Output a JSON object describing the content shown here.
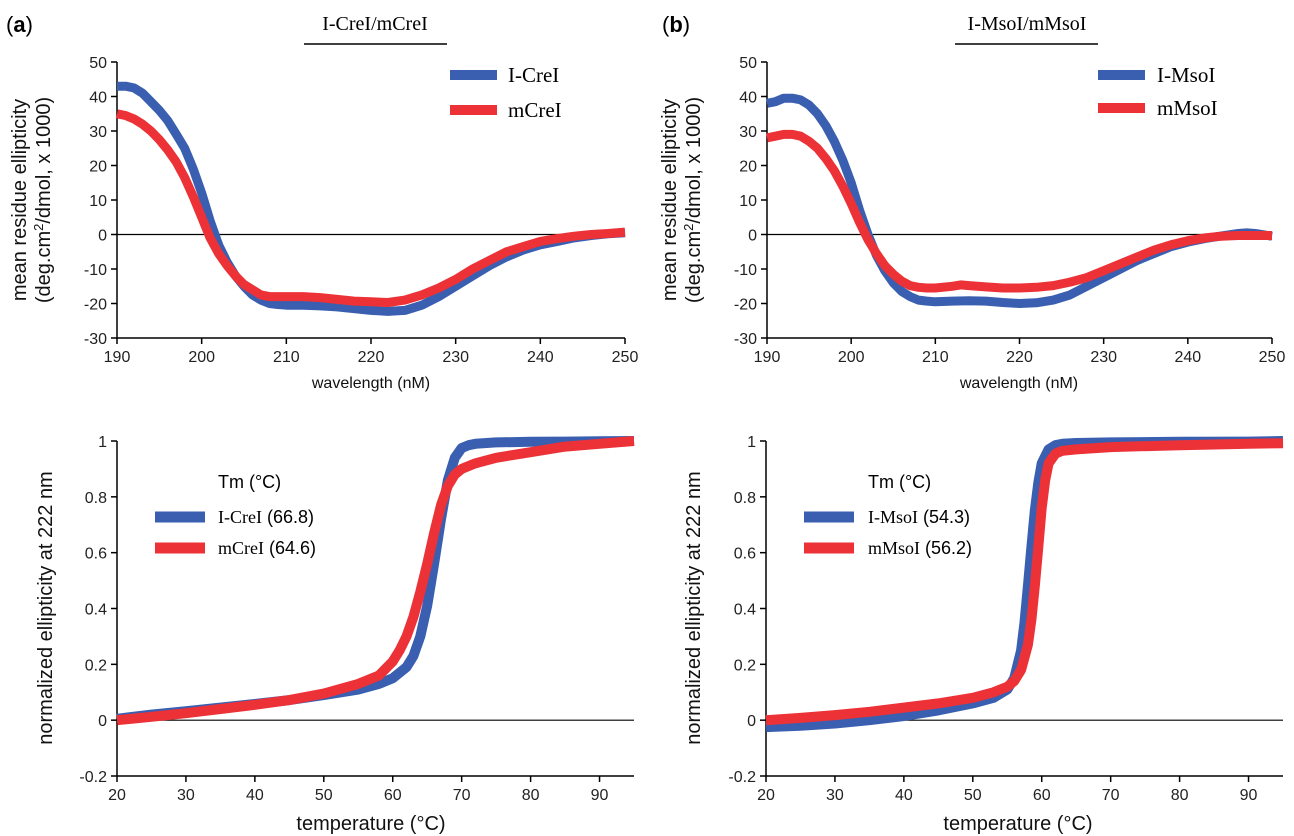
{
  "panels": [
    {
      "letter": "a",
      "title": "I-CreI/mCreI"
    },
    {
      "letter": "b",
      "title": "I-MsoI/mMsoI"
    }
  ],
  "colors": {
    "blue": "#3a5fb0",
    "red": "#ec3237",
    "axis": "#000000"
  },
  "chart_data": [
    {
      "type": "line",
      "panel": "a",
      "xlabel": "wavelength (nM)",
      "ylabel_line1": "mean residue ellipticity",
      "ylabel_line2_prefix": "(deg.cm",
      "ylabel_line2_sup": "2",
      "ylabel_line2_suffix": "/dmol,  x 1000)",
      "xlim": [
        190,
        250
      ],
      "ylim": [
        -30,
        50
      ],
      "xticks": [
        190,
        200,
        210,
        220,
        230,
        240,
        250
      ],
      "yticks": [
        -30,
        -20,
        -10,
        0,
        10,
        20,
        30,
        40,
        50
      ],
      "legend_position": "top-right",
      "series": [
        {
          "name": "I-CreI",
          "color": "#3a5fb0",
          "x": [
            190,
            191,
            192,
            193,
            194,
            195,
            196,
            197,
            198,
            199,
            200,
            201,
            202,
            203,
            204,
            205,
            206,
            207,
            208,
            209,
            210,
            212,
            214,
            216,
            218,
            220,
            222,
            224,
            226,
            228,
            230,
            232,
            234,
            236,
            238,
            240,
            242,
            244,
            246,
            248,
            250
          ],
          "y": [
            43,
            43,
            42.5,
            41,
            38.5,
            36,
            33,
            29,
            25,
            19,
            12,
            4,
            -3,
            -8,
            -12,
            -15,
            -17.5,
            -19,
            -20,
            -20.3,
            -20.5,
            -20.5,
            -20.7,
            -21,
            -21.5,
            -22,
            -22.3,
            -22,
            -20.5,
            -18,
            -15,
            -12,
            -9,
            -6.5,
            -4.5,
            -3,
            -2,
            -1,
            -0.3,
            0.2,
            0.5
          ]
        },
        {
          "name": "mCreI",
          "color": "#ec3237",
          "x": [
            190,
            191,
            192,
            193,
            194,
            195,
            196,
            197,
            198,
            199,
            200,
            201,
            202,
            203,
            204,
            205,
            206,
            207,
            208,
            209,
            210,
            212,
            214,
            216,
            218,
            220,
            222,
            224,
            226,
            228,
            230,
            232,
            234,
            236,
            238,
            240,
            242,
            244,
            246,
            248,
            250
          ],
          "y": [
            35,
            34.5,
            33.5,
            32,
            30,
            27.5,
            24.5,
            21,
            16.5,
            11,
            5,
            -1,
            -5.5,
            -9,
            -12,
            -14.5,
            -16,
            -17.5,
            -18,
            -18,
            -18,
            -18,
            -18.3,
            -18.8,
            -19.3,
            -19.5,
            -19.7,
            -19,
            -17.5,
            -15.5,
            -13,
            -10,
            -7.5,
            -5,
            -3.5,
            -2,
            -1.2,
            -0.5,
            0,
            0.3,
            0.7
          ]
        }
      ]
    },
    {
      "type": "line",
      "panel": "b",
      "xlabel": "wavelength (nM)",
      "ylabel_line1": "mean residue ellipticity",
      "ylabel_line2_prefix": "(deg.cm",
      "ylabel_line2_sup": "2",
      "ylabel_line2_suffix": "/dmol,  x 1000)",
      "xlim": [
        190,
        250
      ],
      "ylim": [
        -30,
        50
      ],
      "xticks": [
        190,
        200,
        210,
        220,
        230,
        240,
        250
      ],
      "yticks": [
        -30,
        -20,
        -10,
        0,
        10,
        20,
        30,
        40,
        50
      ],
      "legend_position": "top-right",
      "series": [
        {
          "name": "I-MsoI",
          "color": "#3a5fb0",
          "x": [
            190,
            191,
            192,
            193,
            194,
            195,
            196,
            197,
            198,
            199,
            200,
            201,
            202,
            203,
            204,
            205,
            206,
            207,
            208,
            209,
            210,
            212,
            214,
            216,
            218,
            220,
            222,
            224,
            226,
            228,
            230,
            232,
            234,
            236,
            238,
            240,
            242,
            244,
            246,
            247,
            248,
            250
          ],
          "y": [
            38,
            38.5,
            39.5,
            39.5,
            39,
            37.5,
            35,
            31.5,
            27,
            21.5,
            15,
            7,
            0,
            -6,
            -10.5,
            -14,
            -16.5,
            -18,
            -19,
            -19.3,
            -19.5,
            -19.3,
            -19.2,
            -19.3,
            -19.7,
            -20,
            -19.8,
            -19,
            -17.5,
            -15,
            -12.5,
            -10,
            -7.5,
            -5.5,
            -3.5,
            -2.2,
            -1.2,
            -0.4,
            0.3,
            0.5,
            0.3,
            -0.5
          ]
        },
        {
          "name": "mMsoI",
          "color": "#ec3237",
          "x": [
            190,
            191,
            192,
            193,
            194,
            195,
            196,
            197,
            198,
            199,
            200,
            201,
            202,
            203,
            204,
            205,
            206,
            207,
            208,
            209,
            210,
            212,
            213,
            214,
            216,
            218,
            220,
            222,
            224,
            226,
            228,
            230,
            232,
            234,
            236,
            238,
            240,
            242,
            244,
            246,
            248,
            250
          ],
          "y": [
            28,
            28.5,
            29,
            29,
            28.5,
            27,
            25,
            22,
            18.5,
            14,
            9,
            3.5,
            -1.5,
            -5.5,
            -9,
            -11.5,
            -13.5,
            -14.8,
            -15.3,
            -15.5,
            -15.5,
            -15,
            -14.6,
            -14.8,
            -15.2,
            -15.5,
            -15.5,
            -15.3,
            -14.8,
            -13.8,
            -12.5,
            -10.5,
            -8.5,
            -6.5,
            -4.5,
            -3,
            -1.8,
            -1,
            -0.5,
            -0.3,
            -0.3,
            -0.3
          ]
        }
      ]
    },
    {
      "type": "line",
      "panel": "a",
      "xlabel": "temperature (°C)",
      "ylabel": "normalized ellipticity at 222 nm",
      "xlim": [
        20,
        95
      ],
      "ylim": [
        -0.2,
        1
      ],
      "xticks": [
        20,
        30,
        40,
        50,
        60,
        70,
        80,
        90
      ],
      "yticks": [
        -0.2,
        0,
        0.2,
        0.4,
        0.6,
        0.8,
        1
      ],
      "ytick_labels": [
        "-0.2",
        "0",
        "0.2",
        "0.4",
        "0.6",
        "0.8",
        "1"
      ],
      "legend_title": "Tm (°C)",
      "legend_position": "middle-left",
      "series": [
        {
          "name": "I-CreI",
          "tm_label": "(66.8)",
          "color": "#3a5fb0",
          "x": [
            20,
            25,
            30,
            35,
            40,
            45,
            50,
            55,
            58,
            60,
            62,
            63,
            64,
            65,
            66,
            67,
            68,
            69,
            70,
            71,
            72,
            75,
            80,
            85,
            90,
            95
          ],
          "y": [
            0.005,
            0.02,
            0.032,
            0.045,
            0.058,
            0.072,
            0.09,
            0.11,
            0.13,
            0.15,
            0.19,
            0.23,
            0.3,
            0.41,
            0.56,
            0.72,
            0.86,
            0.94,
            0.975,
            0.985,
            0.99,
            0.995,
            0.997,
            0.998,
            0.999,
            1
          ]
        },
        {
          "name": "mCreI",
          "tm_label": "(64.6)",
          "color": "#ec3237",
          "x": [
            20,
            25,
            30,
            35,
            40,
            45,
            50,
            55,
            58,
            60,
            61,
            62,
            63,
            64,
            65,
            66,
            67,
            68,
            69,
            70,
            72,
            75,
            80,
            85,
            90,
            95
          ],
          "y": [
            0,
            0.012,
            0.025,
            0.04,
            0.055,
            0.072,
            0.095,
            0.13,
            0.16,
            0.21,
            0.25,
            0.3,
            0.37,
            0.46,
            0.56,
            0.67,
            0.77,
            0.84,
            0.88,
            0.9,
            0.92,
            0.94,
            0.96,
            0.98,
            0.99,
            1
          ]
        }
      ]
    },
    {
      "type": "line",
      "panel": "b",
      "xlabel": "temperature (°C)",
      "ylabel": "normalized ellipticity at 222 nm",
      "xlim": [
        20,
        95
      ],
      "ylim": [
        -0.2,
        1
      ],
      "xticks": [
        20,
        30,
        40,
        50,
        60,
        70,
        80,
        90
      ],
      "yticks": [
        -0.2,
        0,
        0.2,
        0.4,
        0.6,
        0.8,
        1
      ],
      "ytick_labels": [
        "-0.2",
        "0",
        "0.2",
        "0.4",
        "0.6",
        "0.8",
        "1"
      ],
      "legend_title": "Tm (°C)",
      "legend_position": "middle-left",
      "series": [
        {
          "name": "I-MsoI",
          "tm_label": "(54.3)",
          "color": "#3a5fb0",
          "x": [
            20,
            25,
            30,
            35,
            40,
            45,
            50,
            53,
            55,
            56,
            57,
            57.5,
            58,
            58.5,
            59,
            59.5,
            60,
            61,
            62,
            63,
            65,
            70,
            80,
            90,
            95
          ],
          "y": [
            -0.025,
            -0.02,
            -0.012,
            0,
            0.015,
            0.035,
            0.06,
            0.08,
            0.11,
            0.15,
            0.25,
            0.35,
            0.48,
            0.62,
            0.75,
            0.85,
            0.92,
            0.97,
            0.985,
            0.99,
            0.993,
            0.995,
            0.997,
            0.998,
            1
          ]
        },
        {
          "name": "mMsoI",
          "tm_label": "(56.2)",
          "color": "#ec3237",
          "x": [
            20,
            25,
            30,
            35,
            40,
            45,
            50,
            53,
            55,
            56,
            57,
            58,
            58.5,
            59,
            59.5,
            60,
            60.5,
            61,
            62,
            63,
            65,
            70,
            80,
            90,
            95
          ],
          "y": [
            0,
            0.008,
            0.018,
            0.03,
            0.045,
            0.06,
            0.08,
            0.1,
            0.12,
            0.14,
            0.18,
            0.27,
            0.36,
            0.48,
            0.62,
            0.76,
            0.86,
            0.92,
            0.955,
            0.965,
            0.97,
            0.978,
            0.985,
            0.99,
            0.992
          ]
        }
      ]
    }
  ]
}
